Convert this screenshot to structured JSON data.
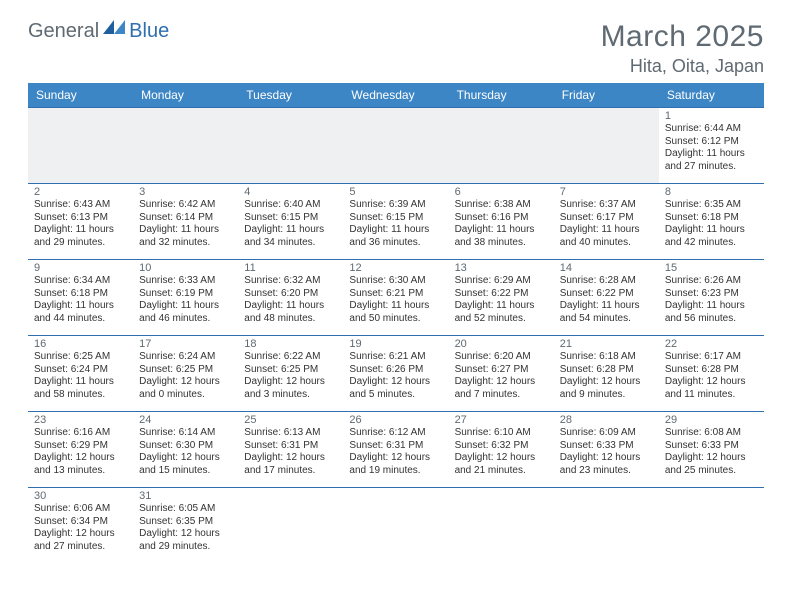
{
  "logo": {
    "part1": "General",
    "part2": "Blue"
  },
  "title": "March 2025",
  "location": "Hita, Oita, Japan",
  "colors": {
    "header_bg": "#3d86c6",
    "header_text": "#ffffff",
    "border": "#2f6fb0",
    "muted_text": "#5f6a72",
    "body_text": "#333333",
    "empty_bg": "#eef0f1",
    "logo_blue": "#2f6fb0"
  },
  "weekdays": [
    "Sunday",
    "Monday",
    "Tuesday",
    "Wednesday",
    "Thursday",
    "Friday",
    "Saturday"
  ],
  "weeks": [
    [
      {
        "empty": true
      },
      {
        "empty": true
      },
      {
        "empty": true
      },
      {
        "empty": true
      },
      {
        "empty": true
      },
      {
        "empty": true
      },
      {
        "day": "1",
        "sunrise": "Sunrise: 6:44 AM",
        "sunset": "Sunset: 6:12 PM",
        "daylight1": "Daylight: 11 hours",
        "daylight2": "and 27 minutes."
      }
    ],
    [
      {
        "day": "2",
        "sunrise": "Sunrise: 6:43 AM",
        "sunset": "Sunset: 6:13 PM",
        "daylight1": "Daylight: 11 hours",
        "daylight2": "and 29 minutes."
      },
      {
        "day": "3",
        "sunrise": "Sunrise: 6:42 AM",
        "sunset": "Sunset: 6:14 PM",
        "daylight1": "Daylight: 11 hours",
        "daylight2": "and 32 minutes."
      },
      {
        "day": "4",
        "sunrise": "Sunrise: 6:40 AM",
        "sunset": "Sunset: 6:15 PM",
        "daylight1": "Daylight: 11 hours",
        "daylight2": "and 34 minutes."
      },
      {
        "day": "5",
        "sunrise": "Sunrise: 6:39 AM",
        "sunset": "Sunset: 6:15 PM",
        "daylight1": "Daylight: 11 hours",
        "daylight2": "and 36 minutes."
      },
      {
        "day": "6",
        "sunrise": "Sunrise: 6:38 AM",
        "sunset": "Sunset: 6:16 PM",
        "daylight1": "Daylight: 11 hours",
        "daylight2": "and 38 minutes."
      },
      {
        "day": "7",
        "sunrise": "Sunrise: 6:37 AM",
        "sunset": "Sunset: 6:17 PM",
        "daylight1": "Daylight: 11 hours",
        "daylight2": "and 40 minutes."
      },
      {
        "day": "8",
        "sunrise": "Sunrise: 6:35 AM",
        "sunset": "Sunset: 6:18 PM",
        "daylight1": "Daylight: 11 hours",
        "daylight2": "and 42 minutes."
      }
    ],
    [
      {
        "day": "9",
        "sunrise": "Sunrise: 6:34 AM",
        "sunset": "Sunset: 6:18 PM",
        "daylight1": "Daylight: 11 hours",
        "daylight2": "and 44 minutes."
      },
      {
        "day": "10",
        "sunrise": "Sunrise: 6:33 AM",
        "sunset": "Sunset: 6:19 PM",
        "daylight1": "Daylight: 11 hours",
        "daylight2": "and 46 minutes."
      },
      {
        "day": "11",
        "sunrise": "Sunrise: 6:32 AM",
        "sunset": "Sunset: 6:20 PM",
        "daylight1": "Daylight: 11 hours",
        "daylight2": "and 48 minutes."
      },
      {
        "day": "12",
        "sunrise": "Sunrise: 6:30 AM",
        "sunset": "Sunset: 6:21 PM",
        "daylight1": "Daylight: 11 hours",
        "daylight2": "and 50 minutes."
      },
      {
        "day": "13",
        "sunrise": "Sunrise: 6:29 AM",
        "sunset": "Sunset: 6:22 PM",
        "daylight1": "Daylight: 11 hours",
        "daylight2": "and 52 minutes."
      },
      {
        "day": "14",
        "sunrise": "Sunrise: 6:28 AM",
        "sunset": "Sunset: 6:22 PM",
        "daylight1": "Daylight: 11 hours",
        "daylight2": "and 54 minutes."
      },
      {
        "day": "15",
        "sunrise": "Sunrise: 6:26 AM",
        "sunset": "Sunset: 6:23 PM",
        "daylight1": "Daylight: 11 hours",
        "daylight2": "and 56 minutes."
      }
    ],
    [
      {
        "day": "16",
        "sunrise": "Sunrise: 6:25 AM",
        "sunset": "Sunset: 6:24 PM",
        "daylight1": "Daylight: 11 hours",
        "daylight2": "and 58 minutes."
      },
      {
        "day": "17",
        "sunrise": "Sunrise: 6:24 AM",
        "sunset": "Sunset: 6:25 PM",
        "daylight1": "Daylight: 12 hours",
        "daylight2": "and 0 minutes."
      },
      {
        "day": "18",
        "sunrise": "Sunrise: 6:22 AM",
        "sunset": "Sunset: 6:25 PM",
        "daylight1": "Daylight: 12 hours",
        "daylight2": "and 3 minutes."
      },
      {
        "day": "19",
        "sunrise": "Sunrise: 6:21 AM",
        "sunset": "Sunset: 6:26 PM",
        "daylight1": "Daylight: 12 hours",
        "daylight2": "and 5 minutes."
      },
      {
        "day": "20",
        "sunrise": "Sunrise: 6:20 AM",
        "sunset": "Sunset: 6:27 PM",
        "daylight1": "Daylight: 12 hours",
        "daylight2": "and 7 minutes."
      },
      {
        "day": "21",
        "sunrise": "Sunrise: 6:18 AM",
        "sunset": "Sunset: 6:28 PM",
        "daylight1": "Daylight: 12 hours",
        "daylight2": "and 9 minutes."
      },
      {
        "day": "22",
        "sunrise": "Sunrise: 6:17 AM",
        "sunset": "Sunset: 6:28 PM",
        "daylight1": "Daylight: 12 hours",
        "daylight2": "and 11 minutes."
      }
    ],
    [
      {
        "day": "23",
        "sunrise": "Sunrise: 6:16 AM",
        "sunset": "Sunset: 6:29 PM",
        "daylight1": "Daylight: 12 hours",
        "daylight2": "and 13 minutes."
      },
      {
        "day": "24",
        "sunrise": "Sunrise: 6:14 AM",
        "sunset": "Sunset: 6:30 PM",
        "daylight1": "Daylight: 12 hours",
        "daylight2": "and 15 minutes."
      },
      {
        "day": "25",
        "sunrise": "Sunrise: 6:13 AM",
        "sunset": "Sunset: 6:31 PM",
        "daylight1": "Daylight: 12 hours",
        "daylight2": "and 17 minutes."
      },
      {
        "day": "26",
        "sunrise": "Sunrise: 6:12 AM",
        "sunset": "Sunset: 6:31 PM",
        "daylight1": "Daylight: 12 hours",
        "daylight2": "and 19 minutes."
      },
      {
        "day": "27",
        "sunrise": "Sunrise: 6:10 AM",
        "sunset": "Sunset: 6:32 PM",
        "daylight1": "Daylight: 12 hours",
        "daylight2": "and 21 minutes."
      },
      {
        "day": "28",
        "sunrise": "Sunrise: 6:09 AM",
        "sunset": "Sunset: 6:33 PM",
        "daylight1": "Daylight: 12 hours",
        "daylight2": "and 23 minutes."
      },
      {
        "day": "29",
        "sunrise": "Sunrise: 6:08 AM",
        "sunset": "Sunset: 6:33 PM",
        "daylight1": "Daylight: 12 hours",
        "daylight2": "and 25 minutes."
      }
    ],
    [
      {
        "day": "30",
        "sunrise": "Sunrise: 6:06 AM",
        "sunset": "Sunset: 6:34 PM",
        "daylight1": "Daylight: 12 hours",
        "daylight2": "and 27 minutes."
      },
      {
        "day": "31",
        "sunrise": "Sunrise: 6:05 AM",
        "sunset": "Sunset: 6:35 PM",
        "daylight1": "Daylight: 12 hours",
        "daylight2": "and 29 minutes."
      },
      {
        "empty": true,
        "noborder": true
      },
      {
        "empty": true,
        "noborder": true
      },
      {
        "empty": true,
        "noborder": true
      },
      {
        "empty": true,
        "noborder": true
      },
      {
        "empty": true,
        "noborder": true
      }
    ]
  ]
}
